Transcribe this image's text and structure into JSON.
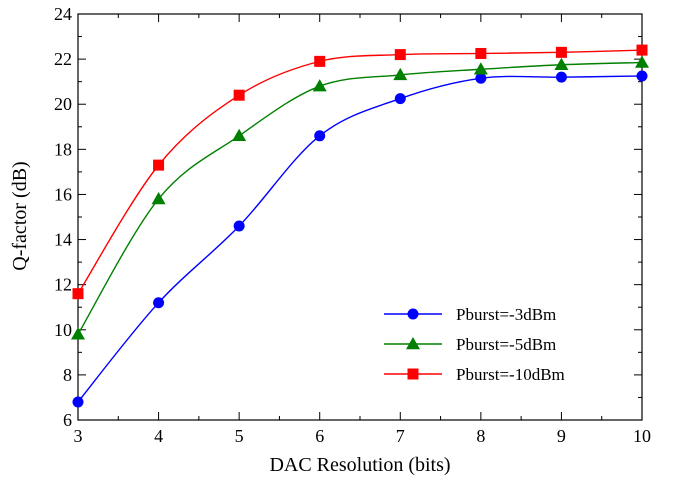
{
  "chart_data": {
    "type": "line",
    "xlabel": "DAC Resolution (bits)",
    "ylabel": "Q-factor (dB)",
    "x": [
      3,
      4,
      5,
      6,
      7,
      8,
      9,
      10
    ],
    "xlim": [
      3,
      10
    ],
    "ylim": [
      6,
      24
    ],
    "xticks": [
      3,
      4,
      5,
      6,
      7,
      8,
      9,
      10
    ],
    "yticks": [
      6,
      8,
      10,
      12,
      14,
      16,
      18,
      20,
      22,
      24
    ],
    "grid": false,
    "legend_position": "bottom-right",
    "series": [
      {
        "name": "Pburst=-3dBm",
        "color": "#0000ff",
        "marker": "circle",
        "values": [
          6.8,
          11.2,
          14.6,
          18.6,
          20.25,
          21.15,
          21.2,
          21.25
        ]
      },
      {
        "name": "Pburst=-5dBm",
        "color": "#008000",
        "marker": "triangle",
        "values": [
          9.8,
          15.8,
          18.6,
          20.8,
          21.3,
          21.55,
          21.75,
          21.85
        ]
      },
      {
        "name": "Pburst=-10dBm",
        "color": "#ff0000",
        "marker": "square",
        "values": [
          11.6,
          17.3,
          20.4,
          21.9,
          22.2,
          22.25,
          22.3,
          22.4
        ]
      }
    ]
  }
}
